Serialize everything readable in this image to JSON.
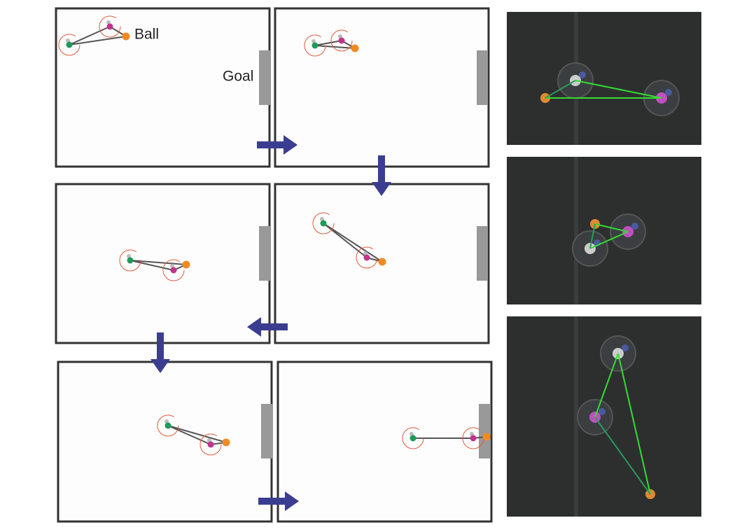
{
  "labels": {
    "ball": "Ball",
    "goal": "Goal"
  }
}
